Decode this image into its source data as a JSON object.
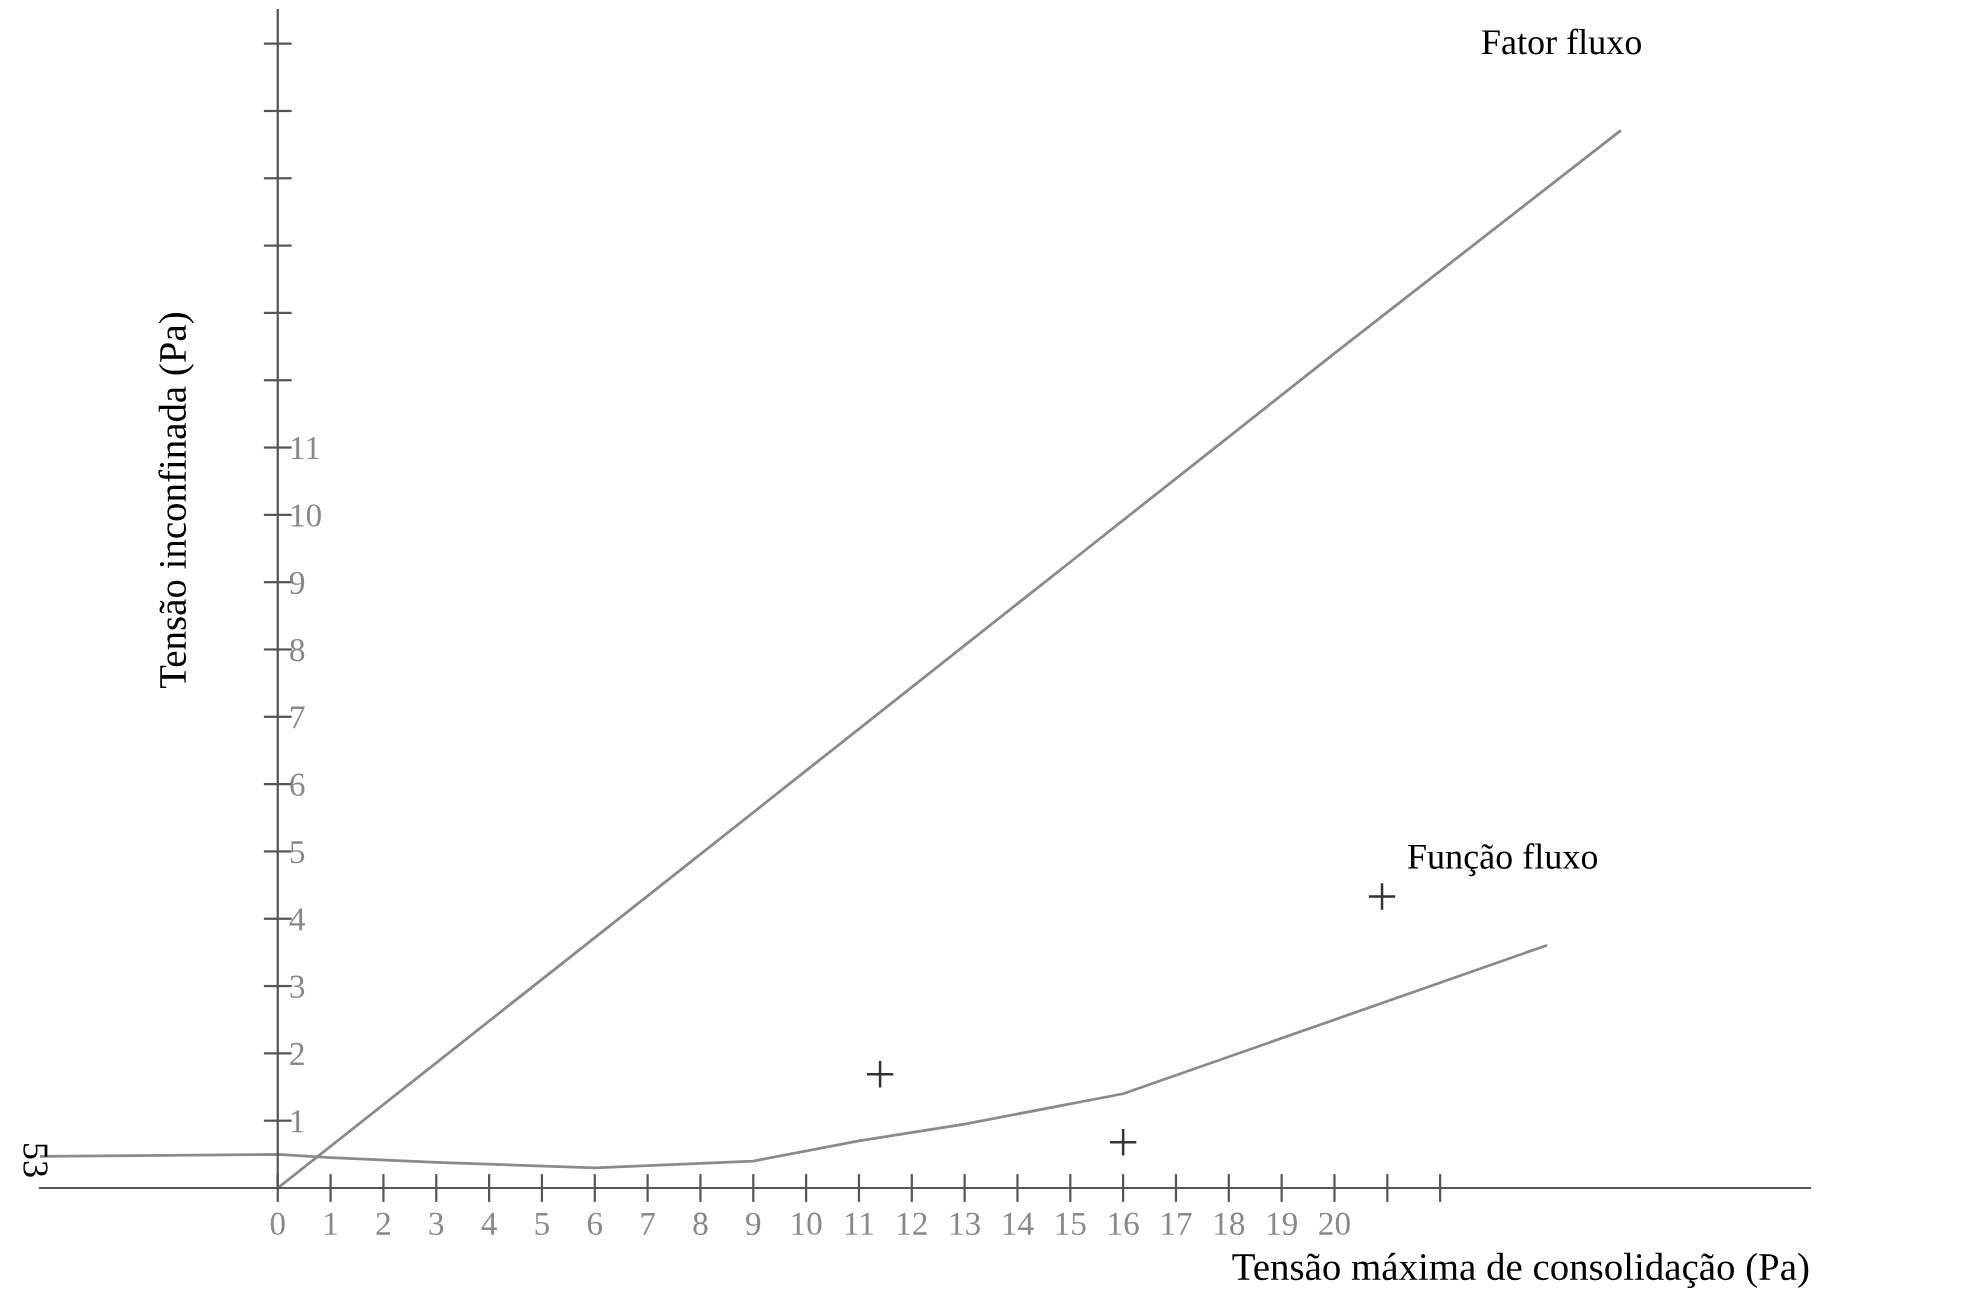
{
  "chart_data": {
    "type": "line",
    "xlabel": "Tensão máxima de consolidação (Pa)",
    "ylabel": "Tensão inconfinada (Pa)",
    "annotations": [
      "53"
    ],
    "xlim": [
      -4.5,
      29
    ],
    "ylim": [
      0,
      17.5
    ],
    "xticks": [
      0,
      1,
      2,
      3,
      4,
      5,
      6,
      7,
      8,
      9,
      10,
      11,
      12,
      13,
      14,
      15,
      16,
      17,
      18,
      19,
      20,
      {
        "value": 21,
        "label": null
      },
      {
        "value": 22,
        "label": null
      }
    ],
    "yticks": [
      1,
      2,
      3,
      4,
      5,
      6,
      7,
      8,
      9,
      10,
      11,
      {
        "value": 12,
        "label": null
      },
      {
        "value": 13,
        "label": null
      },
      {
        "value": 14,
        "label": null
      },
      {
        "value": 15,
        "label": null
      },
      {
        "value": 16,
        "label": null
      },
      {
        "value": 17,
        "label": null
      }
    ],
    "series": [
      {
        "name": "Fator fluxo",
        "color": "#8a8a8a",
        "x": [
          0,
          5,
          10,
          15,
          20,
          25.4
        ],
        "values": [
          0,
          3.1,
          6.2,
          9.3,
          12.4,
          15.7
        ]
      },
      {
        "name": "Função fluxo",
        "color": "#8a8a8a",
        "x": [
          -4.5,
          0,
          1,
          3,
          6,
          9,
          11,
          13,
          16,
          20,
          24
        ],
        "values": [
          0.47,
          0.5,
          0.45,
          0.38,
          0.3,
          0.4,
          0.7,
          0.95,
          1.4,
          2.5,
          3.6
        ]
      },
      {
        "type": "scatter",
        "marker": "cross",
        "color": "#333333",
        "x": [
          11.4,
          16.0,
          20.9
        ],
        "values": [
          1.69,
          0.68,
          4.33
        ]
      }
    ],
    "grid": false,
    "legend": false
  }
}
